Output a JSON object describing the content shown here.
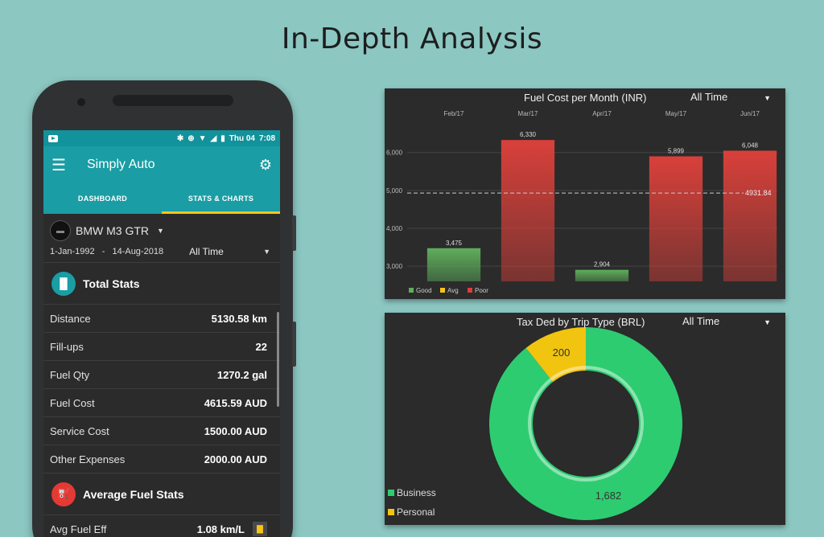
{
  "headline": "In-Depth Analysis",
  "phone": {
    "status": {
      "day": "Thu 04",
      "time": "7:08"
    },
    "app_title": "Simply Auto",
    "tabs": [
      "DASHBOARD",
      "STATS & CHARTS"
    ],
    "vehicle": {
      "name": "BMW M3 GTR",
      "start_date": "1-Jan-1992",
      "separator": "-",
      "end_date": "14-Aug-2018",
      "period": "All Time"
    },
    "total_stats": {
      "title": "Total Stats",
      "rows": [
        {
          "label": "Distance",
          "value": "5130.58 km"
        },
        {
          "label": "Fill-ups",
          "value": "22"
        },
        {
          "label": "Fuel Qty",
          "value": "1270.2 gal"
        },
        {
          "label": "Fuel Cost",
          "value": "4615.59 AUD"
        },
        {
          "label": "Service Cost",
          "value": "1500.00 AUD"
        },
        {
          "label": "Other Expenses",
          "value": "2000.00 AUD"
        }
      ]
    },
    "avg_fuel_stats": {
      "title": "Average Fuel Stats",
      "rows": [
        {
          "label": "Avg Fuel Eff",
          "value": "1.08 km/L"
        }
      ]
    }
  },
  "colors": {
    "good": "#5fae5c",
    "avg": "#f5c518",
    "poor": "#d9403a",
    "business": "#2ecc71",
    "personal": "#f1c40f",
    "teal": "#1a9da4"
  },
  "chart_data": [
    {
      "type": "bar",
      "title": "Fuel Cost per Month (INR)",
      "period": "All Time",
      "categories": [
        "Feb/17",
        "Mar/17",
        "Apr/17",
        "May/17",
        "Jun/17"
      ],
      "values": [
        3475,
        6330,
        2904,
        5899,
        6048
      ],
      "value_labels": [
        "3,475",
        "6,330",
        "2,904",
        "5,899",
        "6,048"
      ],
      "ratings": [
        "Good",
        "Poor",
        "Good",
        "Poor",
        "Poor"
      ],
      "average": 4931.84,
      "average_label": "4931.84",
      "yticks": [
        3000,
        4000,
        5000,
        6000
      ],
      "ytick_labels": [
        "3,000",
        "4,000",
        "5,000",
        "6,000"
      ],
      "ylim": [
        2600,
        6800
      ],
      "legend": [
        "Good",
        "Avg",
        "Poor"
      ]
    },
    {
      "type": "pie",
      "title": "Tax Ded by Trip Type (BRL)",
      "period": "All Time",
      "labels": [
        "Business",
        "Personal"
      ],
      "values": [
        1682,
        200
      ],
      "value_labels": [
        "1,682",
        "200"
      ]
    }
  ]
}
